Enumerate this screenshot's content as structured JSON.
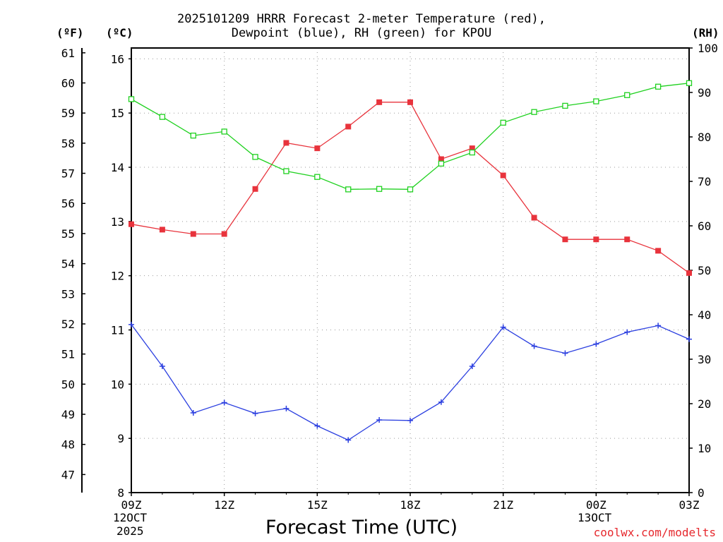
{
  "header": {
    "title_line1": "2025101209 HRRR Forecast 2-meter Temperature (red),",
    "title_line2": "Dewpoint (blue), RH (green) for KPOU"
  },
  "units": {
    "f": "(ºF)",
    "c": "(ºC)",
    "rh": "(RH)"
  },
  "axes": {
    "xlabel": "Forecast Time (UTC)",
    "x_ticks": [
      "09Z",
      "12Z",
      "15Z",
      "18Z",
      "21Z",
      "00Z",
      "03Z"
    ],
    "x_date1": [
      "12OCT",
      "2025"
    ],
    "x_date2": [
      "13OCT"
    ]
  },
  "credit": "coolwx.com/modelts",
  "colors": {
    "temp": "#e8333c",
    "dew": "#2b3fe0",
    "rh": "#1fd11f",
    "grid": "#9a9a9a"
  },
  "chart_data": {
    "type": "line",
    "title": "2025101209 HRRR Forecast 2-meter Temperature (red), Dewpoint (blue), RH (green) for KPOU",
    "xlabel": "Forecast Time (UTC)",
    "x_hours": [
      0,
      1,
      2,
      3,
      4,
      5,
      6,
      7,
      8,
      9,
      10,
      11,
      12,
      13,
      14,
      15,
      16,
      17,
      18
    ],
    "x_tick_hours": [
      0,
      3,
      6,
      9,
      12,
      15,
      18
    ],
    "y_celsius": {
      "range": [
        8,
        16.2
      ],
      "ticks": [
        8,
        9,
        10,
        11,
        12,
        13,
        14,
        15,
        16
      ]
    },
    "y_fahrenheit": {
      "range": [
        46.4,
        61.16
      ],
      "ticks": [
        47,
        48,
        49,
        50,
        51,
        52,
        53,
        54,
        55,
        56,
        57,
        58,
        59,
        60,
        61
      ]
    },
    "y_rh": {
      "range": [
        0,
        100
      ],
      "ticks": [
        0,
        10,
        20,
        30,
        40,
        50,
        60,
        70,
        80,
        90,
        100
      ]
    },
    "series": [
      {
        "name": "Temperature (C)",
        "color": "red",
        "marker": "filled-square",
        "values": [
          12.95,
          12.85,
          12.77,
          12.77,
          13.6,
          14.45,
          14.35,
          14.75,
          15.2,
          15.2,
          14.15,
          14.35,
          13.85,
          13.07,
          12.67,
          12.67,
          12.67,
          12.46,
          12.05
        ]
      },
      {
        "name": "Dewpoint (C)",
        "color": "blue",
        "marker": "plus",
        "values": [
          11.1,
          10.33,
          9.47,
          9.66,
          9.46,
          9.55,
          9.23,
          8.97,
          9.34,
          9.33,
          9.67,
          10.33,
          11.05,
          10.7,
          10.57,
          10.74,
          10.96,
          11.08,
          10.83
        ]
      },
      {
        "name": "RH (%)",
        "color": "green",
        "marker": "open-square",
        "values": [
          88.5,
          84.5,
          80.3,
          81.2,
          75.5,
          72.3,
          71.0,
          68.2,
          68.3,
          68.2,
          74.0,
          76.5,
          83.2,
          85.6,
          87.0,
          88.0,
          89.4,
          91.3,
          92.1
        ]
      }
    ]
  }
}
